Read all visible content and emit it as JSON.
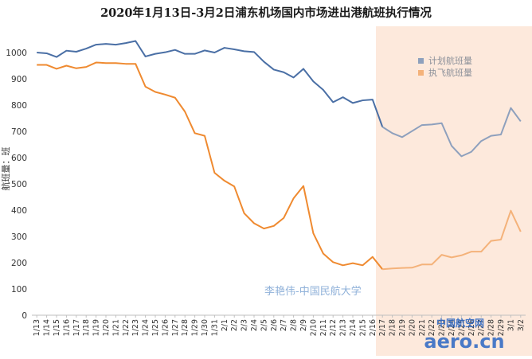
{
  "chart_data": {
    "type": "line",
    "title": "2020年1月13日-3月2日浦东机场国内市场进出港航班执行情况",
    "xlabel": "",
    "ylabel": "航班量：班",
    "ylim": [
      0,
      1100
    ],
    "yticks": [
      0,
      100,
      200,
      300,
      400,
      500,
      600,
      700,
      800,
      900,
      1000
    ],
    "grid": false,
    "legend_position": "top-right",
    "annotation": "李艳伟-中国民航大学",
    "watermark": "中国航空网 aero.cn",
    "highlight": {
      "from": "2/17",
      "to": "3/2",
      "color": "#fde9dc"
    },
    "categories": [
      "1/13",
      "1/14",
      "1/15",
      "1/16",
      "1/17",
      "1/18",
      "1/19",
      "1/20",
      "1/21",
      "1/22",
      "1/23",
      "1/24",
      "1/25",
      "1/26",
      "1/27",
      "1/28",
      "1/29",
      "1/30",
      "1/31",
      "2/1",
      "2/2",
      "2/3",
      "2/4",
      "2/5",
      "2/6",
      "2/7",
      "2/8",
      "2/9",
      "2/10",
      "2/11",
      "2/12",
      "2/13",
      "2/14",
      "2/15",
      "2/16",
      "2/17",
      "2/18",
      "2/19",
      "2/20",
      "2/21",
      "2/22",
      "2/23",
      "2/24",
      "2/25",
      "2/26",
      "2/27",
      "2/28",
      "2/29",
      "3/1",
      "3/2"
    ],
    "series": [
      {
        "name": "计划航班量",
        "color": "#4a6fa5",
        "values": [
          1000,
          997,
          983,
          1007,
          1003,
          1015,
          1030,
          1033,
          1030,
          1036,
          1044,
          985,
          995,
          1001,
          1010,
          995,
          995,
          1008,
          1000,
          1018,
          1012,
          1005,
          1002,
          965,
          935,
          925,
          905,
          938,
          890,
          858,
          811,
          830,
          808,
          818,
          821,
          717,
          693,
          678,
          701,
          724,
          726,
          731,
          645,
          605,
          622,
          663,
          683,
          688,
          789,
          738
        ],
        "late_color": "#8ea0bd"
      },
      {
        "name": "执飞航班量",
        "color": "#ef8a30",
        "values": [
          953,
          953,
          938,
          950,
          940,
          945,
          962,
          960,
          960,
          957,
          957,
          870,
          850,
          840,
          828,
          775,
          693,
          683,
          542,
          512,
          490,
          388,
          350,
          330,
          340,
          370,
          445,
          492,
          312,
          235,
          202,
          190,
          198,
          190,
          222,
          175,
          178,
          180,
          181,
          193,
          193,
          230,
          220,
          228,
          242,
          242,
          283,
          288,
          398,
          318
        ],
        "late_color": "#f4b27a"
      }
    ]
  }
}
